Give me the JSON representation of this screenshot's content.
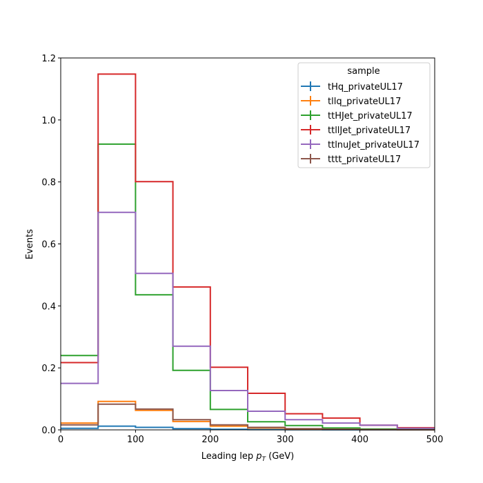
{
  "chart_data": {
    "type": "step-histogram",
    "xlabel_main": "Leading lep ",
    "xlabel_var": "p",
    "xlabel_sub": "T",
    "xlabel_unit": " (GeV)",
    "ylabel": "Events",
    "xlim": [
      0,
      500
    ],
    "ylim": [
      0,
      1.2
    ],
    "xticks": [
      "0",
      "100",
      "200",
      "300",
      "400",
      "500"
    ],
    "yticks": [
      "0.0",
      "0.2",
      "0.4",
      "0.6",
      "0.8",
      "1.0",
      "1.2"
    ],
    "bin_edges": [
      0,
      50,
      100,
      150,
      200,
      250,
      300,
      350,
      400,
      450,
      500
    ],
    "legend_title": "sample",
    "legend_position": "upper right",
    "series": [
      {
        "name": "tHq_privateUL17",
        "color": "#1f77b4",
        "values": [
          0.005,
          0.012,
          0.008,
          0.004,
          0.002,
          0.001,
          0.0005,
          0.0003,
          0.0002,
          0.0001
        ]
      },
      {
        "name": "tllq_privateUL17",
        "color": "#ff7f0e",
        "values": [
          0.022,
          0.092,
          0.063,
          0.027,
          0.012,
          0.006,
          0.003,
          0.002,
          0.001,
          0.0005
        ]
      },
      {
        "name": "ttHJet_privateUL17",
        "color": "#2ca02c",
        "values": [
          0.24,
          0.922,
          0.436,
          0.192,
          0.066,
          0.026,
          0.014,
          0.006,
          0.003,
          0.002
        ]
      },
      {
        "name": "ttllJet_privateUL17",
        "color": "#d62728",
        "values": [
          0.217,
          1.148,
          0.801,
          0.461,
          0.202,
          0.118,
          0.052,
          0.038,
          0.015,
          0.007
        ]
      },
      {
        "name": "ttlnuJet_privateUL17",
        "color": "#9467bd",
        "values": [
          0.15,
          0.702,
          0.505,
          0.27,
          0.127,
          0.06,
          0.033,
          0.022,
          0.015,
          0.005
        ]
      },
      {
        "name": "tttt_privateUL17",
        "color": "#8c564b",
        "values": [
          0.016,
          0.083,
          0.067,
          0.033,
          0.016,
          0.008,
          0.004,
          0.002,
          0.001,
          0.0005
        ]
      }
    ]
  }
}
